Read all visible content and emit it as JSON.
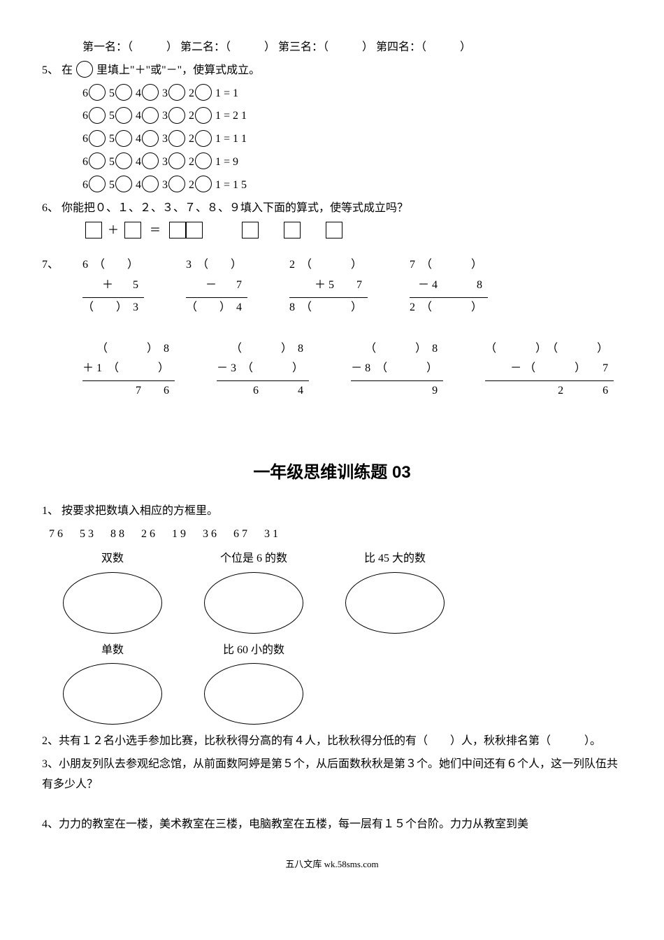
{
  "ranks": {
    "label1": "第一名：（　　　）",
    "label2": "第二名：（　　　）",
    "label3": "第三名：（　　　）",
    "label4": "第四名：（　　　）"
  },
  "q5": {
    "num": "5、",
    "prompt_a": "在",
    "prompt_b": "里填上\"＋\"或\"－\"，使算式成立。",
    "results": [
      "1 = 1",
      "1 = 2 1",
      "1 = 1 1",
      "1 = 9",
      "1 = 1 5"
    ]
  },
  "q6": {
    "num": "6、",
    "prompt": "你能把０、１、２、３、７、８、９填入下面的算式，使等式成立吗？"
  },
  "q7": {
    "num": "7、",
    "row1": [
      {
        "l1": "6（　）",
        "op": "＋",
        "l2": "　5　",
        "l3": "（　）3"
      },
      {
        "l1": "3（　）",
        "op": "－",
        "l2": "　7　",
        "l3": "（　）4"
      },
      {
        "l1": "2（　　）",
        "op": "＋",
        "l2": "5　7",
        "l3": "8（　　）"
      },
      {
        "l1": "7（　　）",
        "op": "－",
        "l2": "4　　8",
        "l3": "2（　　）"
      }
    ],
    "row2": [
      {
        "l1": "（　　）8",
        "op": "＋",
        "l2": "1（　　）",
        "l3": "7　6"
      },
      {
        "l1": "（　　）8",
        "op": "－",
        "l2": "3（　　）",
        "l3": "6　　4"
      },
      {
        "l1": "（　　）8",
        "op": "－",
        "l2": "8（　　）",
        "l3": "　　9"
      },
      {
        "l1": "（　　）（　　）",
        "op": "－",
        "l2": "（　　）　7",
        "l3": "2　　6"
      }
    ]
  },
  "title": "一年级思维训练题 03",
  "p1": {
    "num": "1、",
    "prompt": "按要求把数填入相应的方框里。",
    "nums": "76　53　88　26　19　36　67　31",
    "labels": {
      "even": "双数",
      "six": "个位是 6 的数",
      "gt45": "比 45 大的数",
      "odd": "单数",
      "lt60": "比 60 小的数"
    }
  },
  "p2": {
    "num": "2、",
    "text": "共有１２名小选手参加比赛，比秋秋得分高的有４人，比秋秋得分低的有（　　）人，秋秋排名第（　　　）。"
  },
  "p3": {
    "num": "3、",
    "text": "小朋友列队去参观纪念馆，从前面数阿婷是第５个，从后面数秋秋是第３个。她们中间还有６个人，这一列队伍共有多少人？"
  },
  "p4": {
    "num": "4、",
    "text": "力力的教室在一楼，美术教室在三楼，电脑教室在五楼，每一层有１５个台阶。力力从教室到美"
  },
  "footer": "五八文库 wk.58sms.com"
}
